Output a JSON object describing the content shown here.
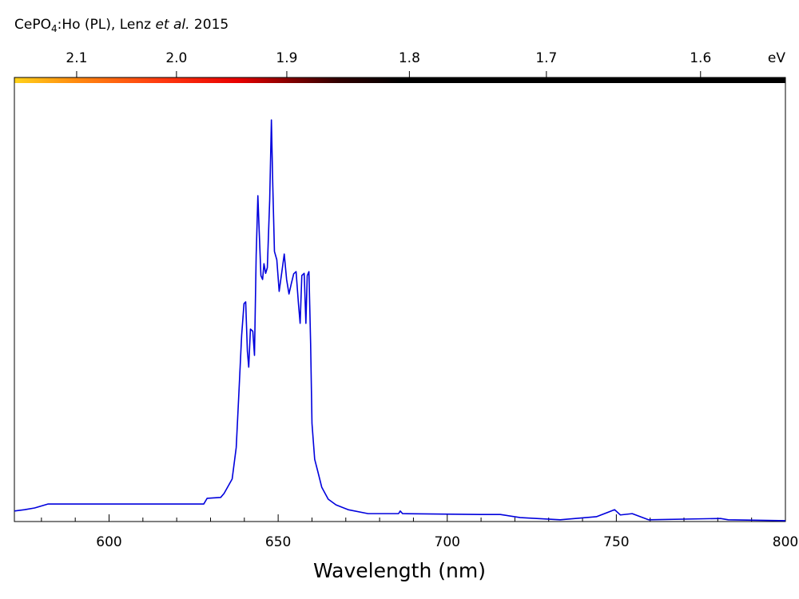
{
  "chart_data": {
    "type": "line",
    "title": {
      "formula": "CePO",
      "subscript": "4",
      "rest": ":Ho (PL), Lenz ",
      "italic": "et al.",
      "year": " 2015"
    },
    "xlabel": "Wavelength (nm)",
    "x2label": "eV",
    "xlim": [
      572,
      800
    ],
    "xticks": [
      600,
      650,
      700,
      750,
      800
    ],
    "xminorticks": [
      580,
      590,
      610,
      620,
      630,
      640,
      660,
      670,
      680,
      690,
      710,
      720,
      730,
      740,
      760,
      770,
      780,
      790
    ],
    "x2lim": [
      2.1676,
      1.5498
    ],
    "x2scale": "reciprocal",
    "x2ticks": [
      2.1,
      {
        "value": 2.0,
        "label": "2.0"
      },
      1.9,
      1.8,
      1.7,
      1.6
    ],
    "ylim": [
      0,
      1
    ],
    "series": [
      {
        "color": "#0000dd",
        "x": [
          572,
          575,
          578,
          582,
          590,
          628,
          629,
          633,
          634,
          636.4,
          637.6,
          638.3,
          639.2,
          639.9,
          640.4,
          640.9,
          641.3,
          641.8,
          642.5,
          643.0,
          643.5,
          644.0,
          644.4,
          644.9,
          645.4,
          645.8,
          646.3,
          646.8,
          647.5,
          648.0,
          648.4,
          648.9,
          649.6,
          650.3,
          651.1,
          651.8,
          652.5,
          653.2,
          653.9,
          654.6,
          655.3,
          656.0,
          656.5,
          657.0,
          657.7,
          658.2,
          658.6,
          659.1,
          659.6,
          660.0,
          660.8,
          661.7,
          662.9,
          664.8,
          667.1,
          670.7,
          676.6,
          685.6,
          686.1,
          686.8,
          709.7,
          715.7,
          721.6,
          733.4,
          744.1,
          749.5,
          751.2,
          754.7,
          759.5,
          780.8,
          783.1,
          800
        ],
        "values": [
          0.024,
          0.027,
          0.031,
          0.04,
          0.04,
          0.04,
          0.053,
          0.055,
          0.064,
          0.097,
          0.169,
          0.279,
          0.424,
          0.497,
          0.501,
          0.388,
          0.352,
          0.439,
          0.434,
          0.379,
          0.607,
          0.743,
          0.661,
          0.561,
          0.552,
          0.588,
          0.566,
          0.579,
          0.734,
          0.916,
          0.77,
          0.616,
          0.597,
          0.525,
          0.57,
          0.61,
          0.552,
          0.519,
          0.543,
          0.565,
          0.57,
          0.497,
          0.452,
          0.561,
          0.566,
          0.452,
          0.561,
          0.57,
          0.406,
          0.224,
          0.142,
          0.115,
          0.078,
          0.051,
          0.038,
          0.027,
          0.018,
          0.018,
          0.024,
          0.018,
          0.016,
          0.016,
          0.009,
          0.004,
          0.011,
          0.027,
          0.015,
          0.018,
          0.004,
          0.007,
          0.004,
          0.002
        ]
      }
    ]
  }
}
